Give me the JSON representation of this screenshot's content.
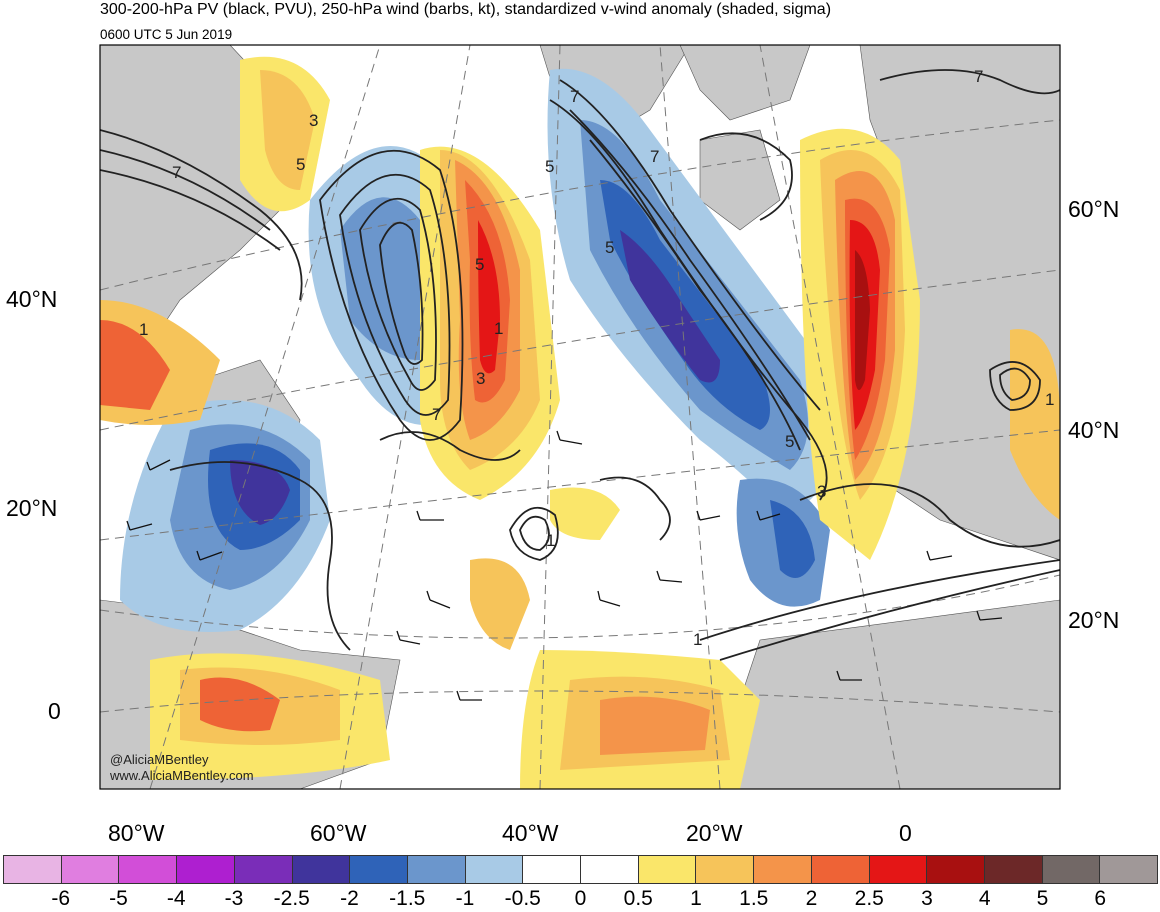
{
  "header": {
    "title": "300-200-hPa PV (black, PVU), 250-hPa wind (barbs, kt), standardized v-wind anomaly (shaded, sigma)",
    "subtitle": "0600 UTC 5 Jun 2019"
  },
  "map": {
    "left_lat_labels": [
      "40°N",
      "20°N",
      "0"
    ],
    "right_lat_labels": [
      "60°N",
      "40°N",
      "20°N"
    ],
    "lon_labels": [
      "80°W",
      "60°W",
      "40°W",
      "20°W",
      "0"
    ],
    "contour_labels": [
      "7",
      "3",
      "5",
      "7",
      "5",
      "7",
      "7",
      "5",
      "1",
      "3",
      "5",
      "1",
      "7",
      "5",
      "3",
      "1",
      "1",
      "1"
    ],
    "credit_handle": "@AliciaMBentley",
    "credit_url": "www.AliciaMBentley.com"
  },
  "colorbar": {
    "labels": [
      "-6",
      "-5",
      "-4",
      "-3",
      "-2.5",
      "-2",
      "-1.5",
      "-1",
      "-0.5",
      "0",
      "0.5",
      "1",
      "1.5",
      "2",
      "2.5",
      "3",
      "4",
      "5",
      "6"
    ],
    "colors": [
      "#e8b4e4",
      "#e07ee0",
      "#d24ed8",
      "#ae1fd0",
      "#7a2db8",
      "#40349c",
      "#2f63b8",
      "#6b96cc",
      "#a8cae6",
      "#ffffff",
      "#ffffff",
      "#fae66a",
      "#f6c45a",
      "#f4944a",
      "#ee6336",
      "#e41616",
      "#a81010",
      "#6c2828",
      "#726866",
      "#a09898"
    ]
  }
}
